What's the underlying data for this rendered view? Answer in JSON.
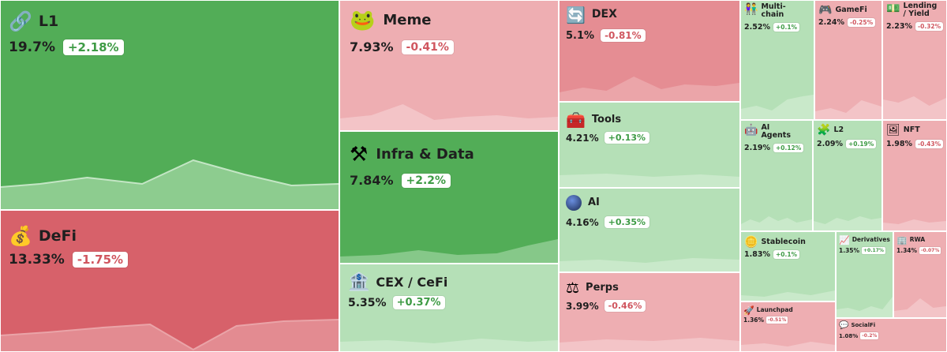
{
  "colors": {
    "strong_green": "#52ad57",
    "light_green": "#b5e0b7",
    "strong_red": "#d7616a",
    "mid_red": "#e58d93",
    "light_red": "#eeaeb2"
  },
  "tiles": [
    {
      "id": "l1",
      "name": "L1",
      "share": "19.7%",
      "change": "+2.18%",
      "direction": "up",
      "icon": "chain-link-icon",
      "color": "strong_green"
    },
    {
      "id": "defi",
      "name": "DeFi",
      "share": "13.33%",
      "change": "-1.75%",
      "direction": "down",
      "icon": "money-bag-icon",
      "color": "strong_red"
    },
    {
      "id": "meme",
      "name": "Meme",
      "share": "7.93%",
      "change": "-0.41%",
      "direction": "down",
      "icon": "frog-icon",
      "color": "light_red"
    },
    {
      "id": "infra",
      "name": "Infra & Data",
      "share": "7.84%",
      "change": "+2.2%",
      "direction": "up",
      "icon": "hammer-wrench-icon",
      "color": "strong_green"
    },
    {
      "id": "cex",
      "name": "CEX / CeFi",
      "share": "5.35%",
      "change": "+0.37%",
      "direction": "up",
      "icon": "bank-icon",
      "color": "light_green"
    },
    {
      "id": "dex",
      "name": "DEX",
      "share": "5.1%",
      "change": "-0.81%",
      "direction": "down",
      "icon": "swap-arrows-icon",
      "color": "mid_red"
    },
    {
      "id": "tools",
      "name": "Tools",
      "share": "4.21%",
      "change": "+0.13%",
      "direction": "up",
      "icon": "toolbox-icon",
      "color": "light_green"
    },
    {
      "id": "ai",
      "name": "AI",
      "share": "4.16%",
      "change": "+0.35%",
      "direction": "up",
      "icon": "orb-icon",
      "color": "light_green"
    },
    {
      "id": "perps",
      "name": "Perps",
      "share": "3.99%",
      "change": "-0.46%",
      "direction": "down",
      "icon": "scales-icon",
      "color": "light_red"
    },
    {
      "id": "multichain",
      "name": "Multi-chain",
      "share": "2.52%",
      "change": "+0.1%",
      "direction": "up",
      "icon": "people-icon",
      "color": "light_green"
    },
    {
      "id": "gamefi",
      "name": "GameFi",
      "share": "2.24%",
      "change": "-0.25%",
      "direction": "down",
      "icon": "gamepad-icon",
      "color": "light_red"
    },
    {
      "id": "lending",
      "name": "Lending / Yield",
      "share": "2.23%",
      "change": "-0.32%",
      "direction": "down",
      "icon": "cash-icon",
      "color": "light_red"
    },
    {
      "id": "aiagents",
      "name": "AI Agents",
      "share": "2.19%",
      "change": "+0.12%",
      "direction": "up",
      "icon": "robot-icon",
      "color": "light_green"
    },
    {
      "id": "l2",
      "name": "L2",
      "share": "2.09%",
      "change": "+0.19%",
      "direction": "up",
      "icon": "puzzle-icon",
      "color": "light_green"
    },
    {
      "id": "nft",
      "name": "NFT",
      "share": "1.98%",
      "change": "-0.43%",
      "direction": "down",
      "icon": "picture-icon",
      "color": "light_red"
    },
    {
      "id": "stablecoin",
      "name": "Stablecoin",
      "share": "1.83%",
      "change": "+0.1%",
      "direction": "up",
      "icon": "coin-icon",
      "color": "light_green"
    },
    {
      "id": "derivatives",
      "name": "Derivatives",
      "share": "1.35%",
      "change": "+0.17%",
      "direction": "up",
      "icon": "chart-up-icon",
      "color": "light_green"
    },
    {
      "id": "rwa",
      "name": "RWA",
      "share": "1.34%",
      "change": "-0.07%",
      "direction": "down",
      "icon": "building-icon",
      "color": "light_red"
    },
    {
      "id": "launchpad",
      "name": "Launchpad",
      "share": "1.36%",
      "change": "-0.51%",
      "direction": "down",
      "icon": "rocket-icon",
      "color": "light_red"
    },
    {
      "id": "socialfi",
      "name": "SocialFi",
      "share": "1.08%",
      "change": "-0.2%",
      "direction": "down",
      "icon": "speech-bubble-icon",
      "color": "light_red"
    }
  ]
}
